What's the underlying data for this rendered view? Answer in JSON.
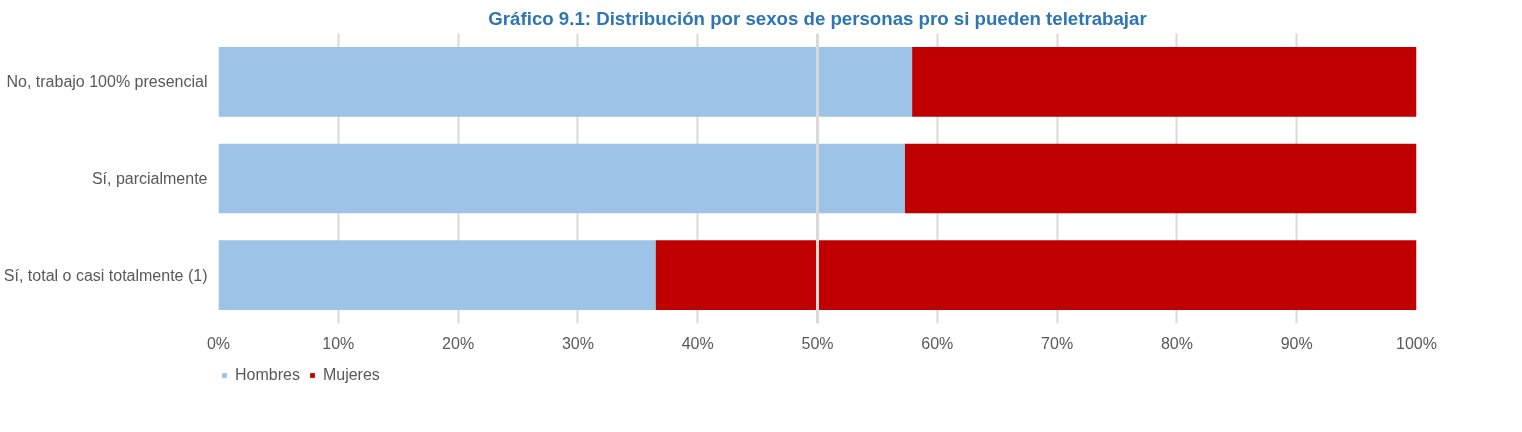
{
  "chart_data": {
    "type": "bar",
    "orientation": "horizontal",
    "stacked": true,
    "title": "Gráfico 9.1: Distribución por sexos de personas pro si pueden teletrabajar",
    "categories": [
      "No, trabajo 100% presencial",
      "Sí, parcialmente",
      "Sí, total o casi totalmente (1)"
    ],
    "series": [
      {
        "name": "Hombres",
        "color": "#9dc3e6",
        "values": [
          57.9,
          57.3,
          36.5
        ]
      },
      {
        "name": "Mujeres",
        "color": "#c00000",
        "values": [
          42.1,
          42.7,
          63.5
        ]
      }
    ],
    "xlim": [
      0,
      100
    ],
    "xticks": [
      {
        "value": 0,
        "label": "0%"
      },
      {
        "value": 10,
        "label": "10%"
      },
      {
        "value": 20,
        "label": "20%"
      },
      {
        "value": 30,
        "label": "30%"
      },
      {
        "value": 40,
        "label": "40%"
      },
      {
        "value": 50,
        "label": "50%"
      },
      {
        "value": 60,
        "label": "60%"
      },
      {
        "value": 70,
        "label": "70%"
      },
      {
        "value": 80,
        "label": "80%"
      },
      {
        "value": 90,
        "label": "90%"
      },
      {
        "value": 100,
        "label": "100%"
      }
    ],
    "ref_lines": [
      {
        "axis": "x",
        "value": 50,
        "color": "#d9d9d9"
      }
    ],
    "grid": "x",
    "legend": "bottom left"
  }
}
